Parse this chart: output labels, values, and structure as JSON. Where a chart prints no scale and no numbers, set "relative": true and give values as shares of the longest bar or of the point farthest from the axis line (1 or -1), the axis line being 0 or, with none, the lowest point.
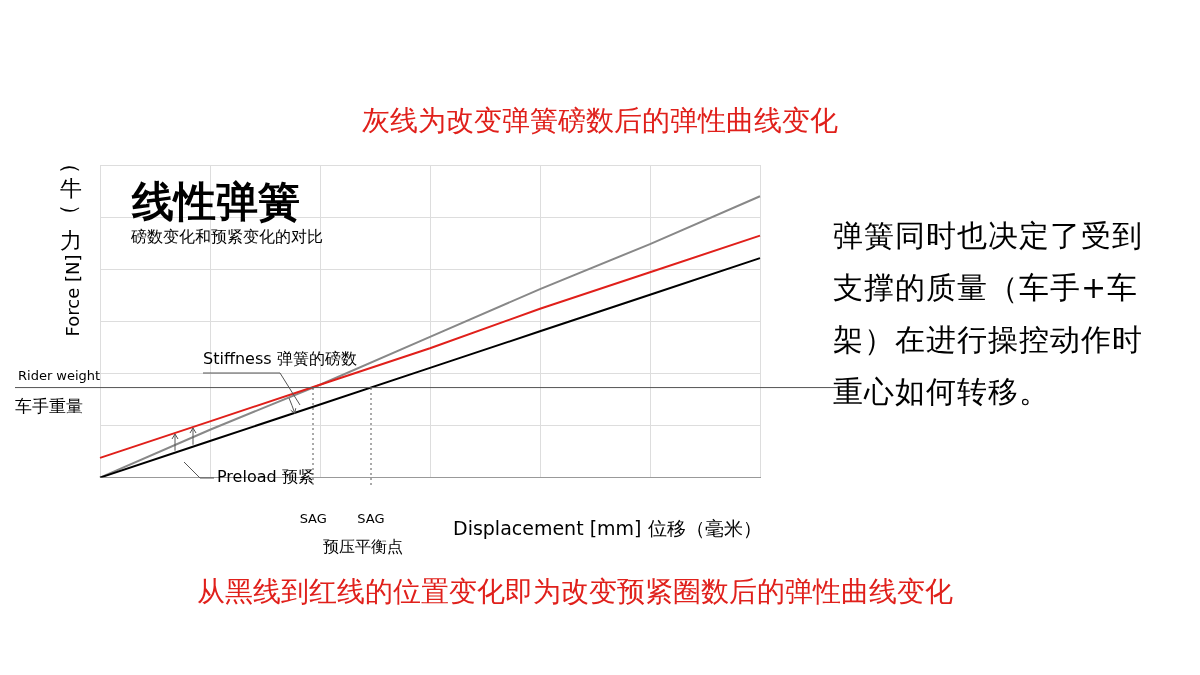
{
  "chart_data": {
    "type": "line",
    "title": "线性弹簧",
    "subtitle": "磅数变化和预紧变化的对比",
    "xlabel": "Displacement [mm] 位移（毫米）",
    "ylabel": "（牛）力 Force [N]",
    "relative": true,
    "categories": [
      null,
      null,
      null,
      null,
      null,
      null,
      null
    ],
    "series": [
      {
        "color": "#000000",
        "values": [
          0,
          0.13,
          0.26,
          0.39,
          0.52,
          0.65,
          0.78
        ]
      },
      {
        "color": "#e0201b",
        "values": [
          0.07,
          0.2,
          0.33,
          0.46,
          0.6,
          0.73,
          0.86
        ]
      },
      {
        "color": "#888888",
        "values": [
          0,
          0.17,
          0.33,
          0.5,
          0.67,
          0.83,
          1
        ]
      }
    ],
    "ref_lines": [
      {
        "axis": "y",
        "value": 0.32,
        "label": "Rider weight\n车手重量",
        "color": "#555555"
      }
    ],
    "annotations": [
      "灰线为改变弹簧磅数后的弹性曲线变化",
      "Stiffness 弹簧的磅数",
      "Preload 预紧",
      "预压平衡点",
      "弹簧同时也决定了受到支撑的质量（车手+车架）在进行操控动作时重心如何转移。",
      "从黑线到红线的位置变化即为改变预紧圈数后的弹性曲线变化",
      "SAG",
      "SAG"
    ],
    "grid": true,
    "legend": false,
    "marker": "none",
    "line_style": "solid"
  }
}
